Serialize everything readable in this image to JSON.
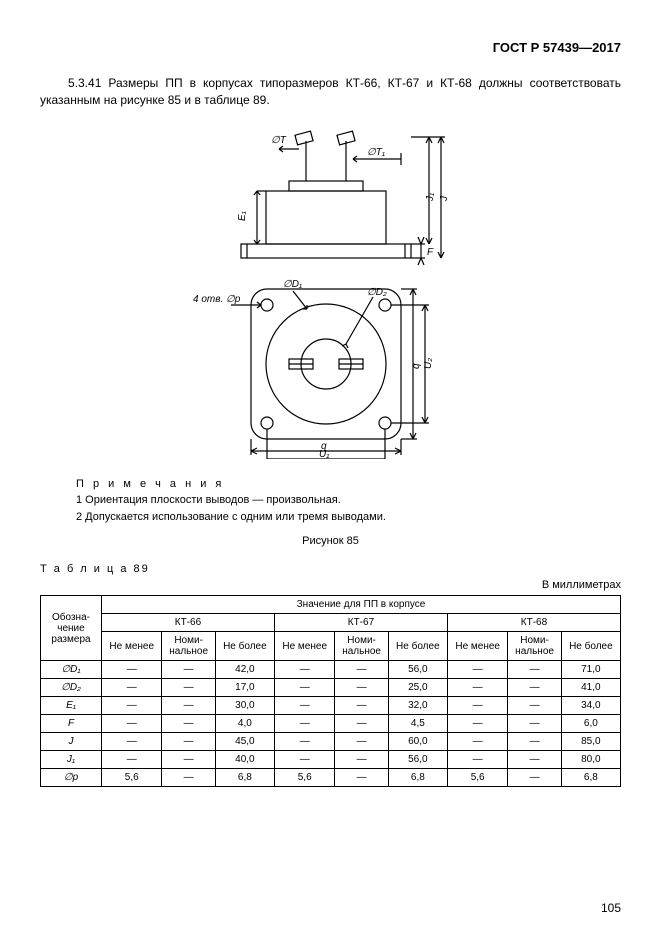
{
  "header": {
    "gost": "ГОСТ Р 57439—2017"
  },
  "body": {
    "clause": "5.3.41 Размеры ПП в корпусах типоразмеров КТ-66, КТ-67 и КТ-68 должны соответствовать указанным на рисунке 85 и в таблице 89."
  },
  "diagram": {
    "labels": {
      "oT": "∅T",
      "oT1": "∅T₁",
      "E1": "E₁",
      "J": "J",
      "J1": "J₁",
      "F": "F",
      "D1": "∅D₁",
      "D2": "∅D₂",
      "p": "4 отв. ∅p",
      "q": "q",
      "U1": "U₁",
      "U2": "U₂"
    },
    "line_color": "#000000",
    "line_width": 1.2,
    "bg": "#ffffff"
  },
  "notes": {
    "title": "П р и м е ч а н и я",
    "n1": "1 Ориентация плоскости выводов — произвольная.",
    "n2": "2 Допускается использование с одним или тремя выводами."
  },
  "figure_caption": "Рисунок 85",
  "table": {
    "title": "Т а б л и ц а  89",
    "units": "В миллиметрах",
    "header_top": "Значение для ПП в корпусе",
    "col0": "Обозна-\nчение\nразмера",
    "groups": [
      "КТ-66",
      "КТ-67",
      "КТ-68"
    ],
    "subheaders": [
      "Не менее",
      "Номи-\nнальное",
      "Не более"
    ],
    "rows": [
      {
        "label": "∅D₁",
        "cells": [
          "—",
          "—",
          "42,0",
          "—",
          "—",
          "56,0",
          "—",
          "—",
          "71,0"
        ]
      },
      {
        "label": "∅D₂",
        "cells": [
          "—",
          "—",
          "17,0",
          "—",
          "—",
          "25,0",
          "—",
          "—",
          "41,0"
        ]
      },
      {
        "label": "E₁",
        "cells": [
          "—",
          "—",
          "30,0",
          "—",
          "—",
          "32,0",
          "—",
          "—",
          "34,0"
        ]
      },
      {
        "label": "F",
        "cells": [
          "—",
          "—",
          "4,0",
          "—",
          "—",
          "4,5",
          "—",
          "—",
          "6,0"
        ]
      },
      {
        "label": "J",
        "cells": [
          "—",
          "—",
          "45,0",
          "—",
          "—",
          "60,0",
          "—",
          "—",
          "85,0"
        ]
      },
      {
        "label": "J₁",
        "cells": [
          "—",
          "—",
          "40,0",
          "—",
          "—",
          "56,0",
          "—",
          "—",
          "80,0"
        ]
      },
      {
        "label": "∅p",
        "cells": [
          "5,6",
          "—",
          "6,8",
          "5,6",
          "—",
          "6,8",
          "5,6",
          "—",
          "6,8"
        ]
      }
    ]
  },
  "page_num": "105"
}
